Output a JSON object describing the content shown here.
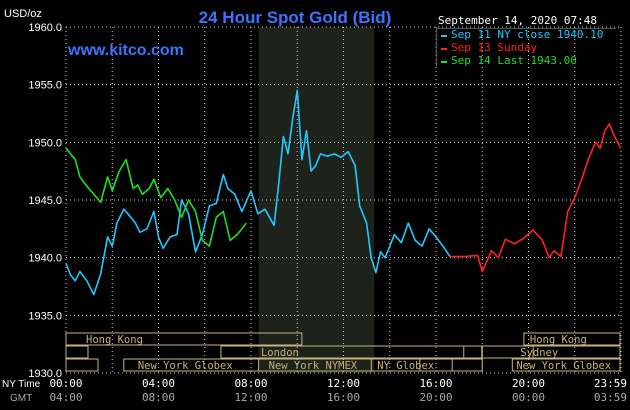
{
  "header": {
    "units": "USD/oz",
    "title": "24 Hour Spot Gold (Bid)",
    "site": "www.kitco.com",
    "timestamp": "September 14, 2020 07:48"
  },
  "legend": [
    {
      "label": "Sep 11 NY close 1940.10",
      "color": "#22c8ff"
    },
    {
      "label": "Sep 13 Sunday",
      "color": "#ff2020"
    },
    {
      "label": "Sep 14 Last 1943.00",
      "color": "#22dd22"
    }
  ],
  "sessions": [
    {
      "label": "Hong Kong"
    },
    {
      "label": "London"
    },
    {
      "label": "New York Globex"
    },
    {
      "label": "New York NYMEX"
    },
    {
      "label": "NY Globex"
    },
    {
      "label": "Hong Kong"
    },
    {
      "label": "Sydney"
    },
    {
      "label": "New York Globex"
    }
  ],
  "axis_labels": {
    "ny_time": "NY Time",
    "gmt": "GMT"
  },
  "chart_data": {
    "type": "line",
    "title": "24 Hour Spot Gold (Bid)",
    "ylabel": "USD/oz",
    "ylim": [
      1930,
      1960
    ],
    "y_ticks": [
      "1930.0",
      "1935.0",
      "1940.0",
      "1945.0",
      "1950.0",
      "1955.0",
      "1960.0"
    ],
    "xlim": [
      0,
      24
    ],
    "x_ticks_ny": [
      "00:00",
      "04:00",
      "08:00",
      "12:00",
      "16:00",
      "20:00",
      "23:59"
    ],
    "x_ticks_gmt": [
      "04:00",
      "08:00",
      "12:00",
      "16:00",
      "20:00",
      "00:00",
      "03:59"
    ],
    "shaded_hours": [
      8.33,
      13.33
    ],
    "grid": true,
    "series": [
      {
        "name": "Sep 11 NY close 1940.10",
        "color": "#22c8ff",
        "x": [
          0,
          0.2,
          0.4,
          0.6,
          0.9,
          1.2,
          1.5,
          1.8,
          2.0,
          2.2,
          2.5,
          2.8,
          3.0,
          3.2,
          3.5,
          3.8,
          4.0,
          4.2,
          4.5,
          4.8,
          5.0,
          5.3,
          5.6,
          5.9,
          6.2,
          6.5,
          6.8,
          7.0,
          7.3,
          7.6,
          8.0,
          8.3,
          8.6,
          9.0,
          9.2,
          9.4,
          9.6,
          9.8,
          10.0,
          10.2,
          10.4,
          10.6,
          10.8,
          11.0,
          11.3,
          11.6,
          11.9,
          12.2,
          12.5,
          12.7,
          13.0,
          13.2,
          13.4,
          13.6,
          13.8,
          14.0,
          14.2,
          14.5,
          14.8,
          15.1,
          15.4,
          15.7,
          16.0,
          16.3,
          16.6
        ],
        "values": [
          1939.5,
          1938.5,
          1938.0,
          1938.8,
          1938.0,
          1936.8,
          1938.6,
          1941.8,
          1941.0,
          1943.0,
          1944.2,
          1943.5,
          1943.0,
          1942.2,
          1942.5,
          1944.0,
          1941.8,
          1940.8,
          1941.8,
          1942.0,
          1945.0,
          1943.8,
          1940.5,
          1942.0,
          1944.5,
          1944.7,
          1947.2,
          1946.0,
          1945.5,
          1944.0,
          1945.8,
          1943.8,
          1944.2,
          1942.8,
          1946.5,
          1950.5,
          1949.0,
          1952.0,
          1954.5,
          1948.5,
          1951.0,
          1947.5,
          1948.0,
          1949.0,
          1948.8,
          1949.0,
          1948.7,
          1949.2,
          1948.0,
          1944.5,
          1943.0,
          1940.0,
          1938.7,
          1940.5,
          1940.0,
          1941.0,
          1942.0,
          1941.3,
          1943.0,
          1941.5,
          1941.0,
          1942.5,
          1941.8,
          1941.0,
          1940.1
        ]
      },
      {
        "name": "Sep 13 Sunday",
        "color": "#ff2020",
        "x": [
          16.6,
          17.2,
          17.8,
          18.0,
          18.4,
          18.7,
          19.0,
          19.4,
          19.8,
          20.2,
          20.6,
          20.9,
          21.1,
          21.4,
          21.7,
          22.0,
          22.3,
          22.6,
          22.9,
          23.1,
          23.3,
          23.5,
          23.7,
          23.99
        ],
        "values": [
          1940.1,
          1940.1,
          1940.2,
          1938.8,
          1940.6,
          1940.0,
          1941.6,
          1941.2,
          1941.7,
          1942.4,
          1941.5,
          1940.0,
          1940.6,
          1940.1,
          1944.0,
          1945.2,
          1946.8,
          1948.6,
          1950.0,
          1949.5,
          1951.0,
          1951.6,
          1950.6,
          1949.5
        ]
      },
      {
        "name": "Sep 14 Last 1943.00",
        "color": "#22dd22",
        "x": [
          0,
          0.2,
          0.4,
          0.6,
          0.9,
          1.2,
          1.5,
          1.8,
          2.0,
          2.3,
          2.6,
          2.9,
          3.1,
          3.3,
          3.6,
          3.8,
          4.1,
          4.4,
          4.7,
          5.0,
          5.3,
          5.6,
          5.9,
          6.2,
          6.5,
          6.8,
          7.1,
          7.4,
          7.8
        ],
        "values": [
          1949.5,
          1949.0,
          1948.5,
          1947.0,
          1946.2,
          1945.5,
          1944.8,
          1947.0,
          1945.8,
          1947.5,
          1948.5,
          1946.0,
          1946.3,
          1945.5,
          1946.0,
          1946.8,
          1945.2,
          1946.0,
          1945.0,
          1943.5,
          1945.0,
          1944.0,
          1941.5,
          1941.0,
          1943.5,
          1944.0,
          1941.5,
          1942.0,
          1943.0
        ]
      }
    ]
  }
}
